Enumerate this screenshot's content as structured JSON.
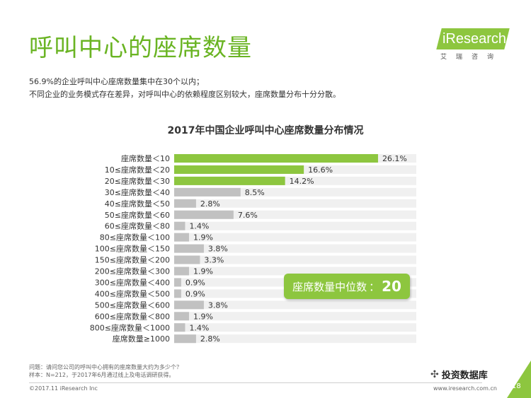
{
  "title": "呼叫中心的座席数量",
  "brand": {
    "name": "iResearch",
    "subtitle": "艾瑞咨询",
    "accent": "#8dc63f"
  },
  "summary": [
    "56.9%的企业呼叫中心座席数量集中在30个以内；",
    "不同企业的业务模式存在差异，对呼叫中心的依赖程度区别较大，座席数量分布十分分散。"
  ],
  "median": {
    "label": "座席数量中位数",
    "separator": "：",
    "value": "20"
  },
  "chart_data": {
    "type": "bar",
    "orientation": "horizontal",
    "title": "2017年中国企业呼叫中心座席数量分布情况",
    "categories": [
      "座席数量＜10",
      "10≤座席数量＜20",
      "20≤座席数量＜30",
      "30≤座席数量＜40",
      "40≤座席数量＜50",
      "50≤座席数量＜60",
      "60≤座席数量＜80",
      "80≤座席数量＜100",
      "100≤座席数量＜150",
      "150≤座席数量＜200",
      "200≤座席数量＜300",
      "300≤座席数量＜400",
      "400≤座席数量＜500",
      "500≤座席数量＜600",
      "600≤座席数量＜800",
      "800≤座席数量＜1000",
      "座席数量≥1000"
    ],
    "values": [
      26.1,
      16.6,
      14.2,
      8.5,
      2.8,
      7.6,
      1.4,
      1.9,
      3.8,
      3.3,
      1.9,
      0.9,
      0.9,
      3.8,
      1.9,
      1.4,
      2.8
    ],
    "value_labels": [
      "26.1%",
      "16.6%",
      "14.2%",
      "8.5%",
      "2.8%",
      "7.6%",
      "1.4%",
      "1.9%",
      "3.8%",
      "3.3%",
      "1.9%",
      "0.9%",
      "0.9%",
      "3.8%",
      "1.9%",
      "1.4%",
      "2.8%"
    ],
    "unit": "%",
    "xlim": [
      0,
      31
    ],
    "highlight_count": 3,
    "colors": {
      "highlight": "#8dc63f",
      "normal": "#c1c1c1",
      "track": "#f0f0f0"
    }
  },
  "footnote": {
    "question": "问题：请问您公司的呼叫中心拥有的座席数量大约为多少个？",
    "sample": "样本：N=212，于2017年6月通过线上及电话调研获得。"
  },
  "footer": {
    "copyright": "©2017.11 iResearch Inc",
    "website": "www.iresearch.com.cn",
    "page": "18",
    "wechat_label": "投资数据库"
  }
}
